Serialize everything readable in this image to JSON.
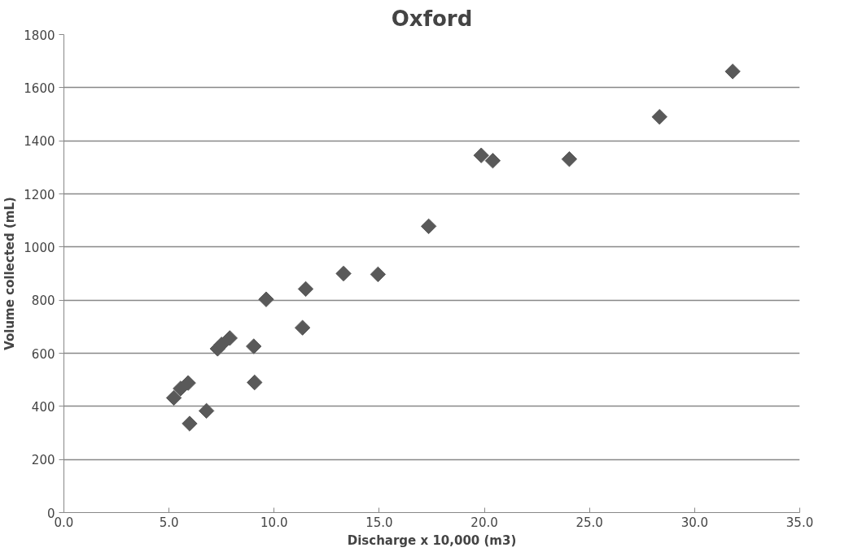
{
  "chart_data": {
    "type": "scatter",
    "title": "Oxford",
    "xlabel": "Discharge x 10,000 (m3)",
    "ylabel": "Volume collected (mL)",
    "x": [
      5.23,
      5.55,
      5.91,
      5.98,
      6.78,
      7.31,
      7.5,
      7.89,
      9.03,
      9.07,
      9.62,
      11.35,
      11.5,
      13.3,
      14.94,
      17.35,
      19.85,
      20.4,
      24.04,
      28.33,
      31.81
    ],
    "series": [
      {
        "color": "#595959",
        "values": [
          432,
          467,
          488,
          335,
          383,
          617,
          633,
          657,
          626,
          490,
          803,
          696,
          842,
          900,
          897,
          1078,
          1345,
          1325,
          1331,
          1490,
          1661
        ]
      }
    ],
    "xlim": [
      0,
      35
    ],
    "xticks": [
      {
        "value": 0,
        "label": "0.0"
      },
      {
        "value": 5,
        "label": "5.0"
      },
      {
        "value": 10,
        "label": "10.0"
      },
      {
        "value": 15,
        "label": "15.0"
      },
      {
        "value": 20,
        "label": "20.0"
      },
      {
        "value": 25,
        "label": "25.0"
      },
      {
        "value": 30,
        "label": "30.0"
      },
      {
        "value": 35,
        "label": "35.0"
      }
    ],
    "ylim": [
      0,
      1800
    ],
    "yticks": [
      0,
      200,
      400,
      600,
      800,
      1000,
      1200,
      1400,
      1600,
      1800
    ],
    "grid": "y",
    "marker": "diamond"
  }
}
